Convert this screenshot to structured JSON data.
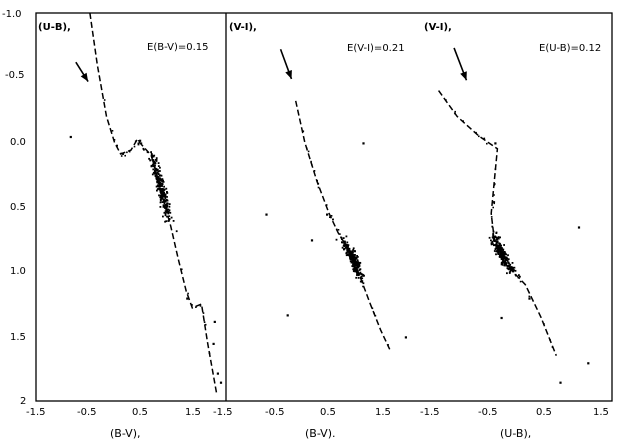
{
  "chart_data": [
    {
      "type": "scatter",
      "ylabel": "(U-B)",
      "ylabel_suffix": ",",
      "xlabel": "(B-V)",
      "xlabel_suffix": ",",
      "annotation": "E(B-V)=0.15",
      "x_ticks": [
        "-1.5",
        "-0.5",
        "0.5",
        "1.5"
      ],
      "xlim": [
        -1.5,
        1.6
      ],
      "ylim": [
        2.0,
        -1.0
      ],
      "y_ticks": [
        "-1.0",
        "-0.5",
        "0.0",
        "0.5",
        "1.0",
        "1.5",
        "2"
      ],
      "arrow": {
        "from": [
          -0.85,
          -0.62
        ],
        "to": [
          -0.65,
          -0.47
        ]
      },
      "isochrone": [
        [
          -0.62,
          -1.0
        ],
        [
          -0.5,
          -0.6
        ],
        [
          -0.35,
          -0.2
        ],
        [
          -0.22,
          0.0
        ],
        [
          -0.12,
          0.09
        ],
        [
          0.05,
          0.06
        ],
        [
          0.15,
          -0.02
        ],
        [
          0.38,
          0.1
        ],
        [
          0.5,
          0.3
        ],
        [
          0.58,
          0.45
        ],
        [
          0.7,
          0.65
        ],
        [
          0.82,
          0.9
        ],
        [
          0.95,
          1.15
        ],
        [
          1.05,
          1.28
        ],
        [
          1.2,
          1.25
        ],
        [
          1.3,
          1.55
        ],
        [
          1.45,
          1.95
        ]
      ],
      "cluster": {
        "x_range": [
          0.32,
          0.85
        ],
        "y_range": [
          -0.15,
          0.8
        ],
        "n": 230
      },
      "field_points": [
        [
          -0.95,
          -0.05
        ],
        [
          -0.1,
          0.08
        ],
        [
          0.18,
          -0.02
        ],
        [
          0.95,
          1.2
        ],
        [
          1.38,
          1.55
        ],
        [
          1.45,
          1.78
        ],
        [
          1.5,
          1.85
        ],
        [
          1.4,
          1.38
        ]
      ]
    },
    {
      "type": "scatter",
      "ylabel": "(V-I)",
      "ylabel_suffix": ",",
      "xlabel": "(B-V)",
      "xlabel_suffix": ".",
      "annotation": "E(V-I)=0.21",
      "x_ticks": [
        "-1.5",
        "-0.5",
        "0.5",
        "1.5"
      ],
      "xlim": [
        -1.5,
        1.7
      ],
      "ylim": [
        2.0,
        -1.0
      ],
      "arrow": {
        "from": [
          -0.6,
          -0.72
        ],
        "to": [
          -0.42,
          -0.49
        ]
      },
      "isochrone": [
        [
          -0.35,
          -0.32
        ],
        [
          -0.2,
          0.0
        ],
        [
          0.0,
          0.3
        ],
        [
          0.2,
          0.55
        ],
        [
          0.35,
          0.7
        ],
        [
          0.55,
          0.85
        ],
        [
          0.72,
          1.05
        ],
        [
          0.88,
          1.25
        ],
        [
          1.05,
          1.45
        ],
        [
          1.2,
          1.6
        ]
      ],
      "cluster": {
        "x_range": [
          0.38,
          0.9
        ],
        "y_range": [
          0.65,
          1.15
        ],
        "n": 220
      },
      "field_points": [
        [
          0.15,
          0.55
        ],
        [
          -0.1,
          0.75
        ],
        [
          -0.5,
          1.33
        ],
        [
          0.75,
          0.0
        ],
        [
          -0.85,
          0.55
        ],
        [
          1.45,
          1.5
        ]
      ]
    },
    {
      "type": "scatter",
      "ylabel": "(V-I)",
      "ylabel_suffix": ",",
      "xlabel": "(U-B)",
      "xlabel_suffix": ",",
      "annotation": "E(U-B)=0.12",
      "x_ticks": [
        "-1.5",
        "-0.5",
        "0.5",
        "1.5"
      ],
      "xlim": [
        -1.6,
        1.5
      ],
      "ylim": [
        2.0,
        -1.0
      ],
      "arrow": {
        "from": [
          -1.05,
          -0.73
        ],
        "to": [
          -0.85,
          -0.48
        ]
      },
      "isochrone": [
        [
          -1.3,
          -0.4
        ],
        [
          -1.0,
          -0.2
        ],
        [
          -0.65,
          -0.05
        ],
        [
          -0.35,
          0.05
        ],
        [
          -0.4,
          0.3
        ],
        [
          -0.45,
          0.55
        ],
        [
          -0.4,
          0.75
        ],
        [
          -0.2,
          0.95
        ],
        [
          0.1,
          1.1
        ],
        [
          0.35,
          1.35
        ],
        [
          0.6,
          1.65
        ]
      ],
      "cluster": {
        "x_range": [
          -0.55,
          0.15
        ],
        "y_range": [
          0.55,
          1.15
        ],
        "n": 240
      },
      "field_points": [
        [
          0.95,
          0.65
        ],
        [
          -0.4,
          0.0
        ],
        [
          0.15,
          1.2
        ],
        [
          1.1,
          1.7
        ],
        [
          0.65,
          1.85
        ],
        [
          -0.3,
          1.35
        ]
      ]
    }
  ]
}
